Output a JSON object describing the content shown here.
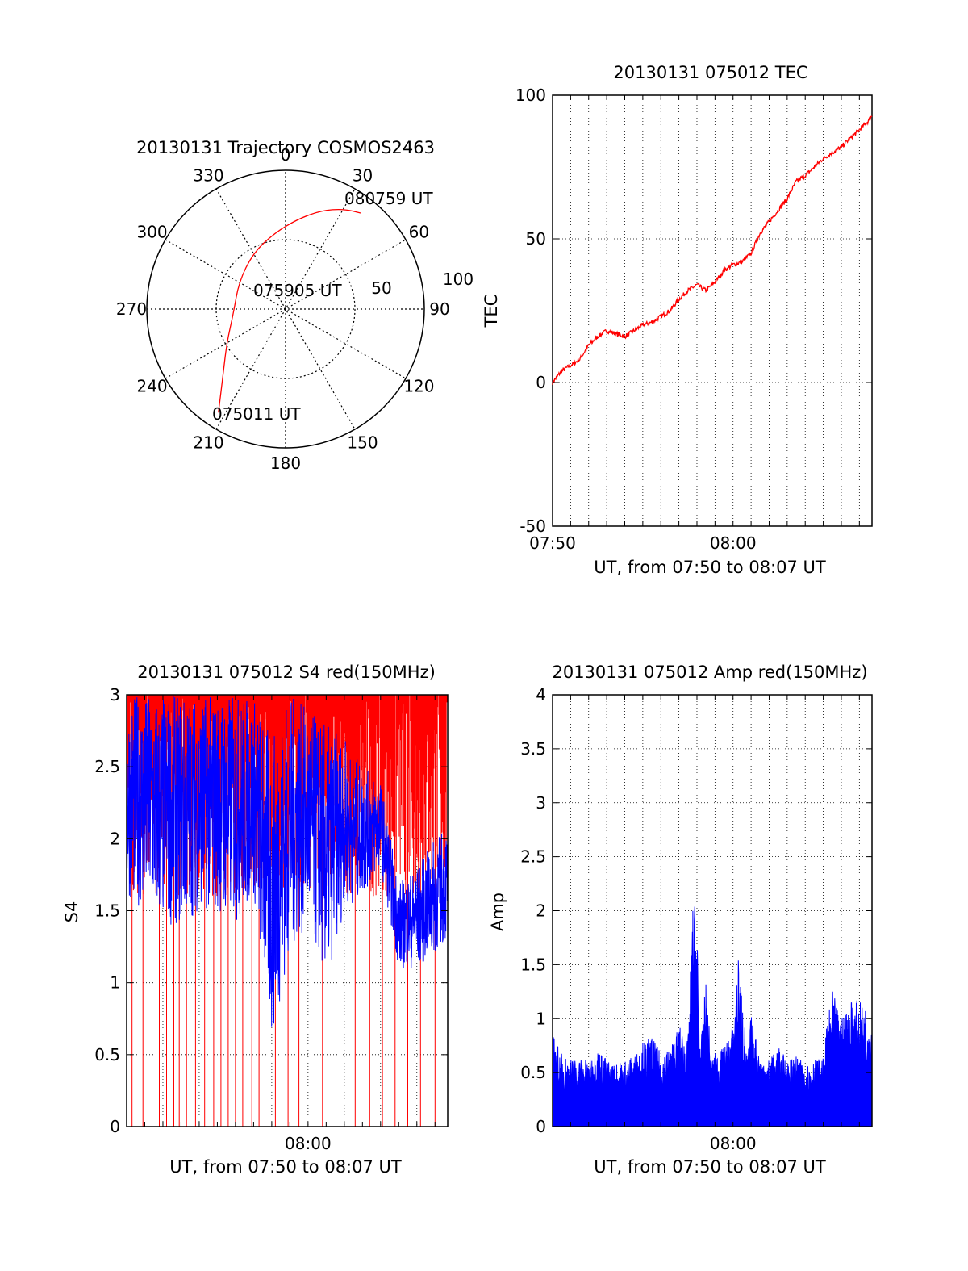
{
  "chart_data": [
    {
      "id": "trajectory",
      "type": "polar",
      "title": "20130131 Trajectory COSMOS2463",
      "angle_labels": [
        "0",
        "30",
        "60",
        "90",
        "120",
        "150",
        "180",
        "210",
        "240",
        "270",
        "300",
        "330"
      ],
      "radius_labels": [
        "50",
        "100"
      ],
      "r_max": 90,
      "line_color": "#ff0000",
      "trajectory": [
        {
          "az": 213,
          "el": 10
        },
        {
          "az": 218,
          "el": 22
        },
        {
          "az": 225,
          "el": 33
        },
        {
          "az": 240,
          "el": 46
        },
        {
          "az": 265,
          "el": 56
        },
        {
          "az": 300,
          "el": 55
        },
        {
          "az": 330,
          "el": 48
        },
        {
          "az": 352,
          "el": 40
        },
        {
          "az": 8,
          "el": 31
        },
        {
          "az": 20,
          "el": 22
        },
        {
          "az": 30,
          "el": 15
        },
        {
          "az": 38,
          "el": 11
        }
      ],
      "annotations": [
        "080759 UT",
        "075905 UT",
        "075011 UT"
      ]
    },
    {
      "id": "tec",
      "type": "line",
      "title": "20130131 075012 TEC",
      "xlabel": "UT, from 07:50 to 08:07 UT",
      "ylabel": "TEC",
      "xlim": [
        0,
        17.7
      ],
      "ylim": [
        -50,
        100
      ],
      "yticks": [
        -50,
        0,
        50,
        100
      ],
      "yticklabels": [
        "-50",
        "0",
        "50",
        "100"
      ],
      "xticks": [
        0,
        10
      ],
      "xticklabels": [
        "07:50",
        "08:00"
      ],
      "xgrid_step_min": 1,
      "color": "#ff0000",
      "x": [
        0,
        0.5,
        1,
        1.5,
        2,
        2.5,
        3,
        3.5,
        4,
        4.5,
        5,
        5.5,
        6,
        6.5,
        7,
        7.5,
        8,
        8.5,
        9,
        9.5,
        10,
        10.5,
        11,
        11.5,
        12,
        12.5,
        13,
        13.5,
        14,
        14.5,
        15,
        15.5,
        16,
        16.5,
        17,
        17.5,
        17.7
      ],
      "y": [
        0,
        4,
        6,
        8,
        13,
        16,
        18,
        17,
        16,
        18,
        20,
        21,
        23,
        25,
        29,
        32,
        34,
        32,
        35,
        39,
        41,
        42,
        45,
        52,
        56,
        60,
        64,
        70,
        72,
        75,
        78,
        80,
        82,
        85,
        88,
        91,
        93
      ]
    },
    {
      "id": "s4",
      "type": "line",
      "title": "20130131 075012 S4 red(150MHz)",
      "xlabel": "UT, from 07:50 to 08:07 UT",
      "ylabel": "S4",
      "xlim": [
        0,
        17.7
      ],
      "ylim": [
        0,
        3
      ],
      "yticks": [
        0,
        0.5,
        1,
        1.5,
        2,
        2.5,
        3
      ],
      "yticklabels": [
        "0",
        "0.5",
        "1",
        "1.5",
        "2",
        "2.5",
        "3"
      ],
      "xticks": [
        10
      ],
      "xticklabels": [
        "08:00"
      ],
      "xgrid_step_min": 2,
      "series": [
        {
          "color": "#ff0000",
          "style": "spikes",
          "description_points": [
            [
              0.3,
              0
            ],
            [
              0.9,
              0
            ],
            [
              1.4,
              0
            ],
            [
              1.8,
              0
            ],
            [
              2.2,
              0
            ],
            [
              2.6,
              0
            ],
            [
              2.9,
              0
            ],
            [
              3.3,
              0
            ],
            [
              3.8,
              0
            ],
            [
              4.3,
              0
            ],
            [
              4.8,
              0
            ],
            [
              5.2,
              0
            ],
            [
              5.6,
              0
            ],
            [
              6.0,
              0
            ],
            [
              6.4,
              0
            ],
            [
              6.9,
              0
            ],
            [
              7.3,
              0
            ],
            [
              8.2,
              0
            ],
            [
              8.9,
              0
            ],
            [
              9.5,
              0
            ],
            [
              10.8,
              0
            ],
            [
              12.6,
              0
            ],
            [
              13.4,
              0
            ],
            [
              14.1,
              0
            ],
            [
              14.8,
              0
            ],
            [
              15.5,
              0
            ],
            [
              16.2,
              0
            ],
            [
              17.0,
              0
            ],
            [
              17.5,
              0
            ]
          ]
        },
        {
          "color": "#0000ff",
          "style": "noise",
          "envelope": [
            [
              0,
              1.6,
              3
            ],
            [
              1,
              1.5,
              3
            ],
            [
              2,
              1.4,
              3
            ],
            [
              3,
              1.4,
              3
            ],
            [
              4,
              1.5,
              3
            ],
            [
              5,
              1.5,
              3
            ],
            [
              6,
              1.4,
              3
            ],
            [
              7,
              1.6,
              3
            ],
            [
              8,
              0.6,
              2.7
            ],
            [
              9,
              1.2,
              3
            ],
            [
              10,
              1.4,
              2.9
            ],
            [
              11,
              1.0,
              2.8
            ],
            [
              12,
              1.5,
              2.7
            ],
            [
              13,
              1.6,
              2.5
            ],
            [
              14,
              1.8,
              2.4
            ],
            [
              15,
              1.1,
              1.7
            ],
            [
              16,
              1.1,
              1.8
            ],
            [
              17,
              1.2,
              2.0
            ],
            [
              17.7,
              1.3,
              2.1
            ]
          ]
        }
      ]
    },
    {
      "id": "amp",
      "type": "line",
      "title": "20130131 075012 Amp red(150MHz)",
      "xlabel": "UT, from 07:50 to 08:07 UT",
      "ylabel": "Amp",
      "xlim": [
        0,
        17.7
      ],
      "ylim": [
        0,
        4
      ],
      "yticks": [
        0,
        0.5,
        1,
        1.5,
        2,
        2.5,
        3,
        3.5,
        4
      ],
      "yticklabels": [
        "0",
        "0.5",
        "1",
        "1.5",
        "2",
        "2.5",
        "3",
        "3.5",
        "4"
      ],
      "xticks": [
        10
      ],
      "xticklabels": [
        "08:00"
      ],
      "xgrid_step_min": 1,
      "color": "#0000ff",
      "x": [
        0,
        0.5,
        1,
        1.5,
        2,
        2.5,
        3,
        3.5,
        4,
        4.5,
        5,
        5.5,
        6,
        6.5,
        7,
        7.5,
        7.8,
        8,
        8.2,
        8.5,
        8.8,
        9,
        9.5,
        10,
        10.3,
        10.5,
        10.8,
        11,
        11.5,
        12,
        12.5,
        13,
        13.5,
        14,
        14.5,
        15,
        15.2,
        15.5,
        16,
        16.5,
        17,
        17.5,
        17.7
      ],
      "y": [
        0.82,
        0.65,
        0.6,
        0.62,
        0.58,
        0.7,
        0.6,
        0.55,
        0.6,
        0.62,
        0.75,
        0.8,
        0.65,
        0.7,
        0.9,
        0.75,
        2.1,
        1.8,
        0.7,
        1.3,
        0.6,
        0.65,
        0.7,
        0.9,
        1.5,
        1.2,
        0.6,
        1.0,
        0.62,
        0.6,
        0.7,
        0.6,
        0.62,
        0.55,
        0.6,
        0.6,
        0.9,
        1.2,
        0.95,
        1.15,
        1.1,
        1.05,
        0.95
      ]
    }
  ]
}
